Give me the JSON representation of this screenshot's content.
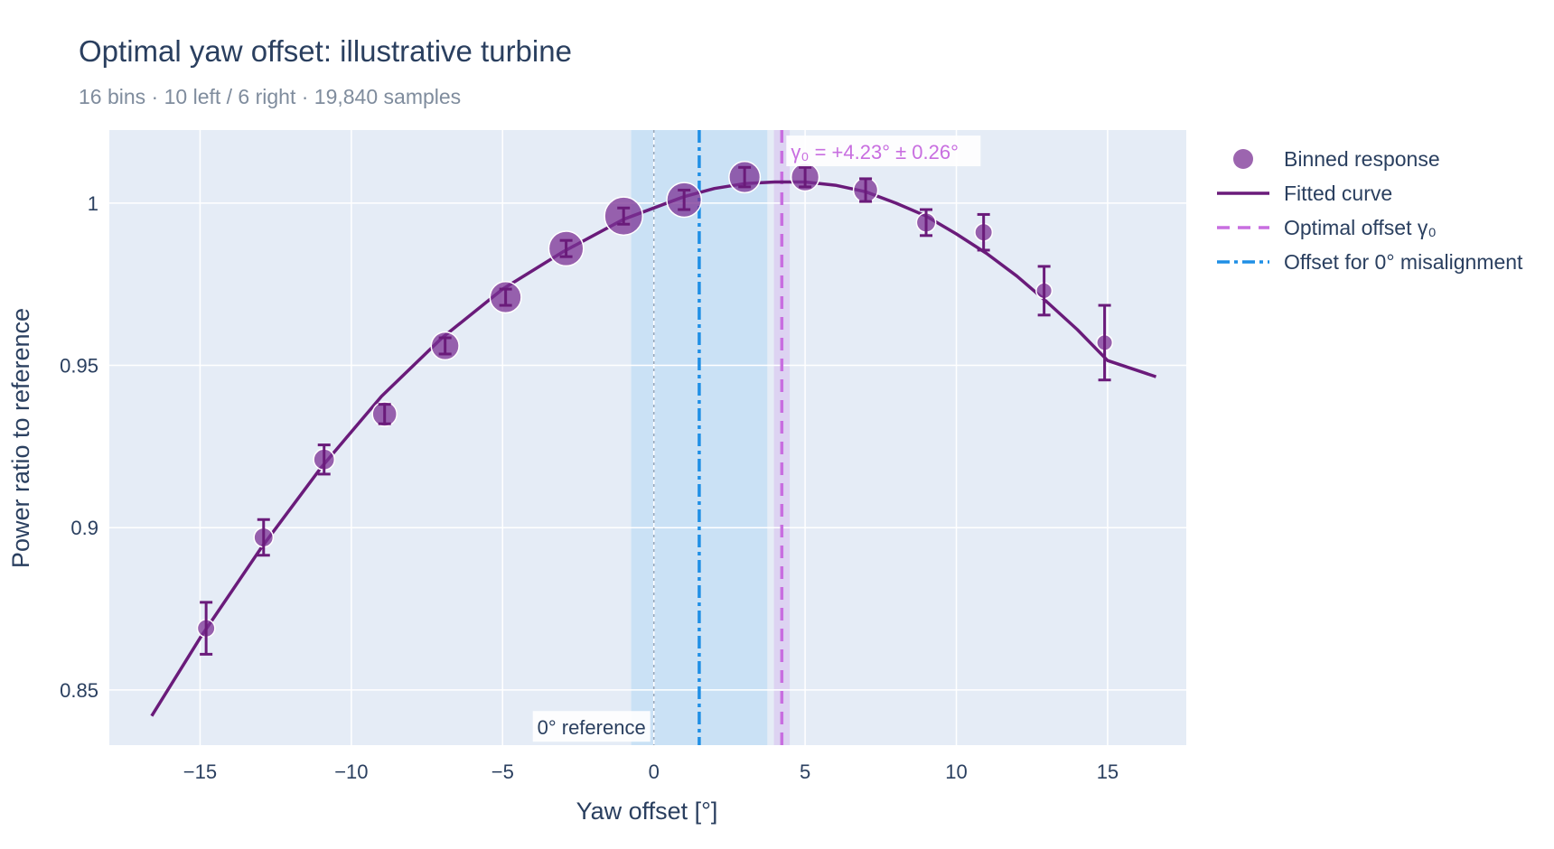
{
  "title": "Optimal yaw offset: illustrative turbine",
  "subtitle": "16 bins · 10 left / 6 right · 19,840 samples",
  "colors": {
    "plot_bg": "#e5ecf6",
    "grid": "#ffffff",
    "fit": "#6a1b7a",
    "points": "#7b3294",
    "optimal": "#c86ee0",
    "optimal_band": "#dcd0f2",
    "zero_misalign": "#1f8fe5",
    "zero_misalign_band": "#c6dff5",
    "reference_line": "#9aa7b8"
  },
  "legend": [
    {
      "key": "points",
      "label": "Binned response",
      "icon": "circle-marker"
    },
    {
      "key": "fit",
      "label": "Fitted curve",
      "icon": "solid-line"
    },
    {
      "key": "optimal",
      "label": "Optimal offset γ₀",
      "icon": "dashed-line"
    },
    {
      "key": "zero_misalign",
      "label": "Offset for 0° misalignment",
      "icon": "dashdot-line"
    }
  ],
  "chart_data": {
    "type": "scatter",
    "xlabel": "Yaw offset [°]",
    "ylabel": "Power ratio to reference",
    "xlim": [
      -18,
      17.6
    ],
    "ylim": [
      0.833,
      1.0225
    ],
    "xticks": [
      -15,
      -10,
      -5,
      0,
      5,
      10,
      15
    ],
    "xtick_labels": [
      "−15",
      "−10",
      "−5",
      "0",
      "5",
      "10",
      "15"
    ],
    "yticks": [
      0.85,
      0.9,
      0.95,
      1.0
    ],
    "ytick_labels": [
      "0.85",
      "0.9",
      "0.95",
      "1"
    ],
    "grid": true,
    "legend_position": "right",
    "series": [
      {
        "name": "Binned response",
        "kind": "markers",
        "x": [
          -14.8,
          -12.9,
          -10.9,
          -8.9,
          -6.9,
          -4.9,
          -2.9,
          -1.0,
          1.0,
          3.0,
          5.0,
          7.0,
          9.0,
          10.9,
          12.9,
          14.9
        ],
        "y": [
          0.869,
          0.897,
          0.921,
          0.935,
          0.956,
          0.971,
          0.986,
          0.996,
          1.001,
          1.008,
          1.008,
          1.004,
          0.994,
          0.991,
          0.973,
          0.957
        ],
        "error": [
          0.008,
          0.0055,
          0.0045,
          0.003,
          0.0025,
          0.0025,
          0.0025,
          0.0025,
          0.003,
          0.003,
          0.003,
          0.0035,
          0.004,
          0.0055,
          0.0075,
          0.0115
        ],
        "relative_size": [
          6,
          7,
          8,
          10,
          12,
          14,
          16,
          18,
          16,
          14,
          12,
          10,
          7,
          6,
          5,
          5
        ]
      },
      {
        "name": "Fitted curve",
        "kind": "line",
        "x": [
          -16.6,
          -15,
          -13,
          -11,
          -9,
          -7,
          -5,
          -3,
          -1,
          1,
          2,
          3,
          4,
          5,
          6,
          7,
          8,
          9,
          10,
          11,
          12,
          13,
          14,
          15,
          16.6
        ],
        "y": [
          0.842,
          0.866,
          0.8935,
          0.9185,
          0.9405,
          0.9585,
          0.9735,
          0.985,
          0.995,
          1.002,
          1.0045,
          1.006,
          1.0065,
          1.0065,
          1.0055,
          1.0035,
          1.0,
          0.996,
          0.9905,
          0.9845,
          0.9775,
          0.9695,
          0.961,
          0.9515,
          0.9465
        ]
      }
    ],
    "vertical_lines": [
      {
        "name": "Optimal offset γ₀",
        "x": 4.23,
        "band": [
          3.97,
          4.49
        ],
        "style": "dash"
      },
      {
        "name": "Offset for 0° misalignment",
        "x": 1.5,
        "band": [
          -0.75,
          3.75
        ],
        "style": "dashdot"
      },
      {
        "name": "0° reference",
        "x": 0,
        "style": "dot"
      }
    ],
    "annotations": [
      {
        "text": "γ₀ = +4.23° ± 0.26°",
        "x": 4.23,
        "y": 1.0158
      },
      {
        "text": "0° reference",
        "x": 0,
        "y": 0.8385
      }
    ]
  }
}
